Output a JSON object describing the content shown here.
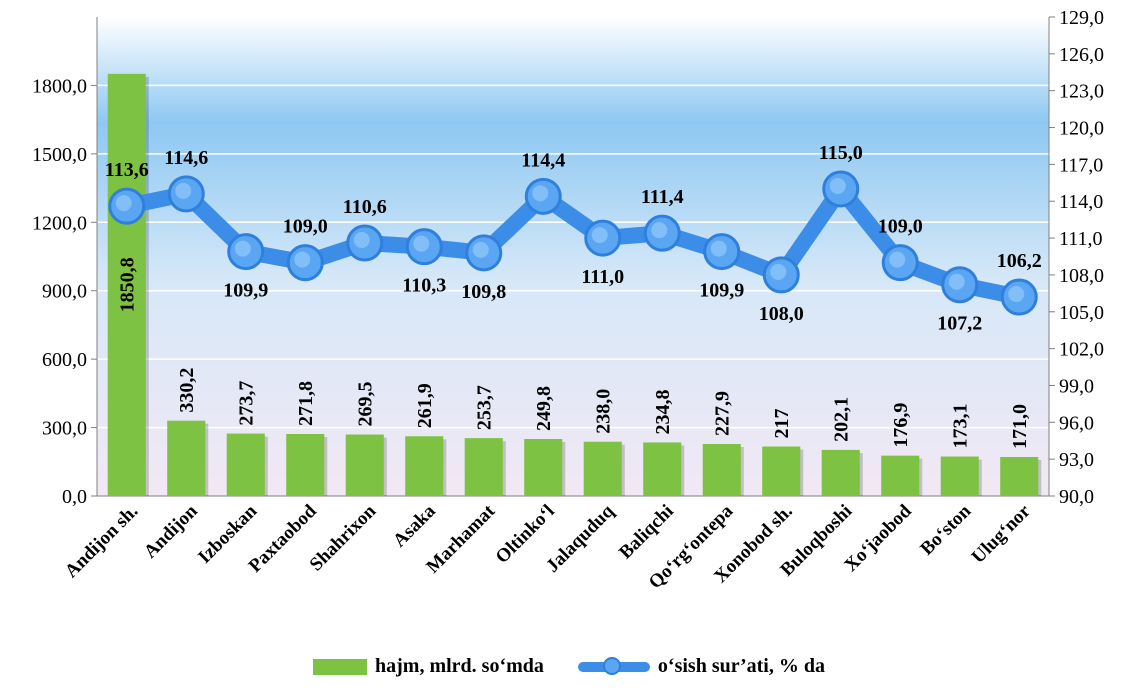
{
  "chart_data": {
    "type": "bar",
    "categories": [
      "Andijon sh.",
      "Andijon",
      "Izboskan",
      "Paxtaobod",
      "Shahrixon",
      "Asaka",
      "Marhamat",
      "Oltinko‘l",
      "Jalaquduq",
      "Baliqchi",
      "Qo‘rg‘ontepa",
      "Xonobod sh.",
      "Buloqboshi",
      "Xo‘jaobod",
      "Bo‘ston",
      "Ulug‘nor"
    ],
    "series": [
      {
        "name": "hajm, mlrd. so‘mda",
        "type": "bar",
        "axis": "left",
        "color": "#7dc242",
        "values": [
          1850.8,
          330.2,
          273.7,
          271.8,
          269.5,
          261.9,
          253.7,
          249.8,
          238.0,
          234.8,
          227.9,
          217,
          202.1,
          176.9,
          173.1,
          171.0
        ],
        "labels": [
          "1850,8",
          "330,2",
          "273,7",
          "271,8",
          "269,5",
          "261,9",
          "253,7",
          "249,8",
          "238,0",
          "234,8",
          "227,9",
          "217",
          "202,1",
          "176,9",
          "173,1",
          "171,0"
        ]
      },
      {
        "name": "o‘sish sur’ati, % da",
        "type": "line",
        "axis": "right",
        "color": "#3c8de8",
        "values": [
          113.6,
          114.6,
          109.9,
          109.0,
          110.6,
          110.3,
          109.8,
          114.4,
          111.0,
          111.4,
          109.9,
          108.0,
          115.0,
          109.0,
          107.2,
          106.2
        ],
        "labels": [
          "113,6",
          "114,6",
          "109,9",
          "109,0",
          "110,6",
          "110,3",
          "109,8",
          "114,4",
          "111,0",
          "111,4",
          "109,9",
          "108,0",
          "115,0",
          "109,0",
          "107,2",
          "106,2"
        ]
      }
    ],
    "y_left": {
      "range": [
        0,
        2100
      ],
      "ticks": [
        0,
        300,
        600,
        900,
        1200,
        1500,
        1800
      ],
      "tick_labels": [
        "0,0",
        "300,0",
        "600,0",
        "900,0",
        "1200,0",
        "1500,0",
        "1800,0"
      ]
    },
    "y_right": {
      "range": [
        90,
        129
      ],
      "ticks": [
        90,
        93,
        96,
        99,
        102,
        105,
        108,
        111,
        114,
        117,
        120,
        123,
        126,
        129
      ],
      "tick_labels": [
        "90,0",
        "93,0",
        "96,0",
        "99,0",
        "102,0",
        "105,0",
        "108,0",
        "111,0",
        "114,0",
        "117,0",
        "120,0",
        "123,0",
        "126,0",
        "129,0"
      ]
    },
    "grid": true,
    "legend": "bottom"
  }
}
